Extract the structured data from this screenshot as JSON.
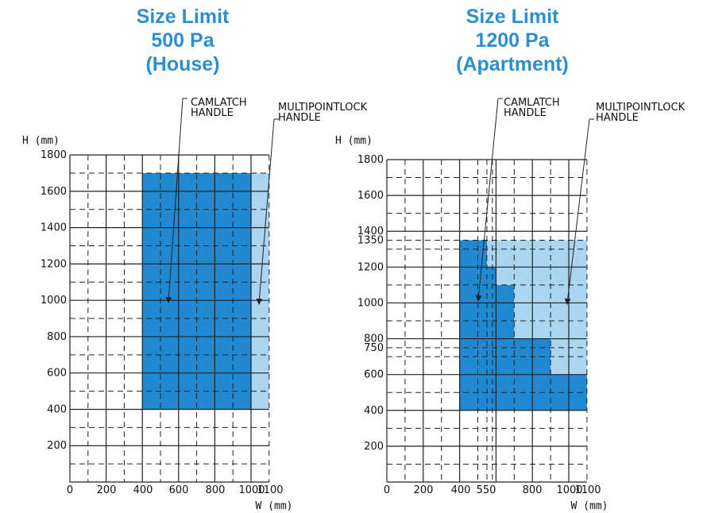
{
  "charts": [
    {
      "title_lines": [
        "Size Limit",
        "500 Pa",
        "(House)"
      ],
      "y_unit": "H (mm)",
      "x_unit": "W (mm)",
      "y_ticks": [
        "1800",
        "1600",
        "1400",
        "1200",
        "1000",
        "800",
        "600",
        "400",
        "200"
      ],
      "x_ticks": [
        "0",
        "200",
        "400",
        "600",
        "800",
        "1000",
        "1100"
      ],
      "annotations": [
        {
          "lines": [
            "CAMLATCH",
            "HANDLE"
          ]
        },
        {
          "lines": [
            "MULTIPOINTLOCK",
            "HANDLE"
          ]
        }
      ],
      "colors": {
        "camlatch": "#2188d2",
        "multipoint": "#a9d5f1"
      }
    },
    {
      "title_lines": [
        "Size Limit",
        "1200 Pa",
        "(Apartment)"
      ],
      "y_unit": "H (mm)",
      "x_unit": "W (mm)",
      "y_ticks": [
        "1800",
        "1600",
        "1400",
        "1350",
        "1200",
        "1000",
        "800",
        "750",
        "600",
        "400",
        "200"
      ],
      "x_ticks": [
        "0",
        "200",
        "400",
        "550",
        "800",
        "1000",
        "1100"
      ],
      "annotations": [
        {
          "lines": [
            "CAMLATCH",
            "HANDLE"
          ]
        },
        {
          "lines": [
            "MULTIPOINTLOCK",
            "HANDLE"
          ]
        }
      ],
      "colors": {
        "camlatch": "#2188d2",
        "multipoint": "#a9d5f1"
      }
    }
  ],
  "chart_data": [
    {
      "type": "area",
      "x_range": [
        0,
        1100
      ],
      "y_range": [
        0,
        1800
      ],
      "regions": [
        {
          "label": "CAMLATCH HANDLE",
          "polygon": [
            [
              400,
              400
            ],
            [
              1000,
              400
            ],
            [
              1000,
              1700
            ],
            [
              400,
              1700
            ]
          ]
        },
        {
          "label": "MULTIPOINTLOCK HANDLE",
          "polygon": [
            [
              1000,
              400
            ],
            [
              1100,
              400
            ],
            [
              1100,
              1700
            ],
            [
              1000,
              1700
            ]
          ]
        }
      ]
    },
    {
      "type": "area",
      "x_range": [
        0,
        1100
      ],
      "y_range": [
        0,
        1800
      ],
      "regions": [
        {
          "label": "CAMLATCH HANDLE",
          "polygon": [
            [
              400,
              400
            ],
            [
              1100,
              400
            ],
            [
              1100,
              600
            ],
            [
              900,
              600
            ],
            [
              900,
              800
            ],
            [
              700,
              800
            ],
            [
              700,
              1100
            ],
            [
              600,
              1100
            ],
            [
              600,
              1200
            ],
            [
              550,
              1200
            ],
            [
              550,
              1350
            ],
            [
              400,
              1350
            ]
          ]
        },
        {
          "label": "MULTIPOINTLOCK HANDLE",
          "polygon": [
            [
              550,
              1350
            ],
            [
              1100,
              1350
            ],
            [
              1100,
              600
            ],
            [
              900,
              600
            ],
            [
              900,
              800
            ],
            [
              700,
              800
            ],
            [
              700,
              1100
            ],
            [
              600,
              1100
            ],
            [
              600,
              1200
            ],
            [
              550,
              1200
            ]
          ]
        }
      ]
    }
  ]
}
